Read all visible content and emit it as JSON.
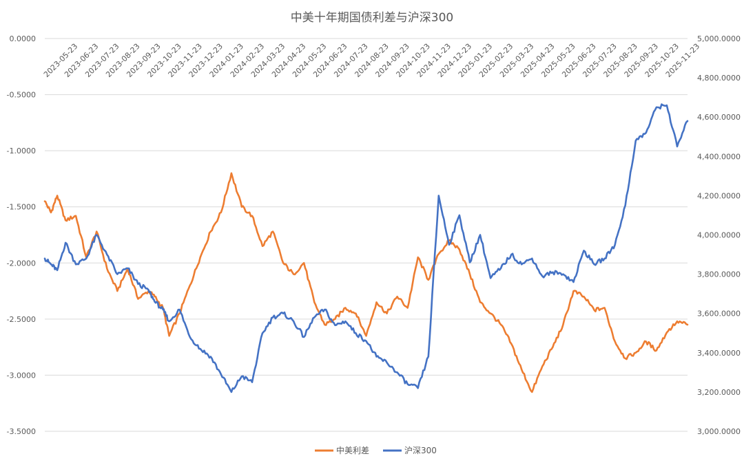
{
  "chart_data": {
    "type": "line",
    "title": "中美十年期国债利差与沪深300",
    "x_ticks": [
      "2023-05-23",
      "2023-06-23",
      "2023-07-23",
      "2023-08-23",
      "2023-09-23",
      "2023-10-23",
      "2023-11-23",
      "2023-12-23",
      "2024-01-23",
      "2024-02-23",
      "2024-03-23",
      "2024-04-23",
      "2024-05-23",
      "2024-06-23",
      "2024-07-23",
      "2024-08-23",
      "2024-09-23",
      "2024-10-23",
      "2024-11-23",
      "2024-12-23",
      "2025-01-23",
      "2025-02-23",
      "2025-03-23",
      "2025-04-23",
      "2025-05-23",
      "2025-06-23",
      "2025-07-23",
      "2025-08-23",
      "2025-09-23",
      "2025-10-23",
      "2025-11-23"
    ],
    "left_axis": {
      "ylim": [
        -3.5,
        0
      ],
      "ticks": [
        0,
        -0.5,
        -1,
        -1.5,
        -2,
        -2.5,
        -3,
        -3.5
      ],
      "tick_labels": [
        "0.0000",
        "-0.5000",
        "-1.0000",
        "-1.5000",
        "-2.0000",
        "-2.5000",
        "-3.0000",
        "-3.5000"
      ]
    },
    "right_axis": {
      "ylim": [
        3000,
        5000
      ],
      "ticks": [
        5000,
        4800,
        4600,
        4400,
        4200,
        4000,
        3800,
        3600,
        3400,
        3200,
        3000
      ],
      "tick_labels": [
        "5,000.0000",
        "4,800.0000",
        "4,600.0000",
        "4,400.0000",
        "4,200.0000",
        "4,000.0000",
        "3,800.0000",
        "3,600.0000",
        "3,400.0000",
        "3,200.0000",
        "3,000.0000"
      ]
    },
    "grid": true,
    "legend_position": "bottom-center",
    "series": [
      {
        "name": "中美利差",
        "axis": "left",
        "color": "#ED7D31",
        "x": [
          0,
          0.3,
          0.6,
          1,
          1.5,
          2,
          2.5,
          3,
          3.5,
          4,
          4.5,
          5,
          5.3,
          5.7,
          6,
          6.5,
          7,
          7.5,
          8,
          8.5,
          9,
          9.5,
          10,
          10.5,
          11,
          11.5,
          12,
          12.5,
          13,
          13.5,
          14,
          14.5,
          15,
          15.5,
          16,
          16.5,
          17,
          17.5,
          18,
          18.5,
          19,
          19.5,
          20,
          20.5,
          21,
          21.5,
          22,
          22.5,
          23,
          23.5,
          24,
          24.5,
          25,
          25.5,
          26,
          26.5,
          27,
          27.5,
          28,
          28.5,
          29,
          29.5,
          30,
          30.5,
          31
        ],
        "values": [
          -1.45,
          -1.55,
          -1.4,
          -1.62,
          -1.58,
          -1.95,
          -1.72,
          -2.05,
          -2.25,
          -2.05,
          -2.32,
          -2.25,
          -2.3,
          -2.4,
          -2.65,
          -2.45,
          -2.2,
          -1.95,
          -1.72,
          -1.55,
          -1.2,
          -1.5,
          -1.58,
          -1.85,
          -1.72,
          -2.0,
          -2.1,
          -2.0,
          -2.35,
          -2.55,
          -2.5,
          -2.4,
          -2.45,
          -2.65,
          -2.35,
          -2.45,
          -2.3,
          -2.4,
          -1.95,
          -2.15,
          -1.92,
          -1.8,
          -1.88,
          -2.1,
          -2.35,
          -2.45,
          -2.55,
          -2.72,
          -2.95,
          -3.15,
          -2.92,
          -2.75,
          -2.55,
          -2.25,
          -2.3,
          -2.42,
          -2.4,
          -2.7,
          -2.85,
          -2.8,
          -2.7,
          -2.78,
          -2.62,
          -2.52,
          -2.55
        ]
      },
      {
        "name": "沪深300",
        "axis": "right",
        "color": "#4472C4",
        "x": [
          0,
          0.3,
          0.6,
          1,
          1.5,
          2,
          2.5,
          3,
          3.5,
          4,
          4.5,
          5,
          5.3,
          5.7,
          6,
          6.5,
          7,
          7.5,
          8,
          8.5,
          9,
          9.5,
          10,
          10.5,
          11,
          11.5,
          12,
          12.5,
          13,
          13.5,
          14,
          14.5,
          15,
          15.5,
          16,
          16.5,
          17,
          17.5,
          18,
          18.5,
          19,
          19.5,
          20,
          20.5,
          21,
          21.5,
          22,
          22.5,
          23,
          23.5,
          24,
          24.5,
          25,
          25.5,
          26,
          26.5,
          27,
          27.5,
          28,
          28.5,
          29,
          29.5,
          30,
          30.5,
          31
        ],
        "values": [
          3880,
          3850,
          3820,
          3960,
          3850,
          3880,
          4000,
          3900,
          3800,
          3830,
          3750,
          3720,
          3660,
          3620,
          3560,
          3620,
          3480,
          3420,
          3380,
          3290,
          3200,
          3280,
          3250,
          3500,
          3580,
          3600,
          3560,
          3480,
          3580,
          3620,
          3540,
          3560,
          3500,
          3460,
          3380,
          3350,
          3300,
          3240,
          3220,
          3380,
          4200,
          3950,
          4100,
          3860,
          4000,
          3780,
          3830,
          3900,
          3850,
          3880,
          3790,
          3810,
          3800,
          3760,
          3920,
          3850,
          3880,
          3950,
          4150,
          4480,
          4520,
          4650,
          4660,
          4450,
          4580
        ]
      }
    ]
  },
  "legend": {
    "series1": "中美利差",
    "series2": "沪深300"
  }
}
